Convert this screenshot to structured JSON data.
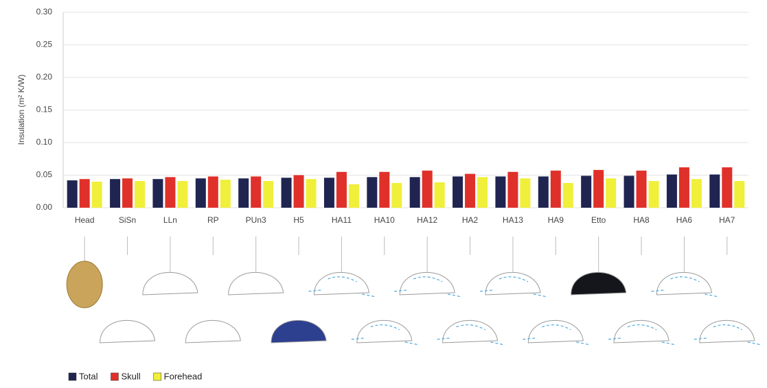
{
  "chart_data": {
    "type": "bar",
    "y_label": "Insulation (m² K/W)",
    "categories": [
      "Head",
      "SiSn",
      "LLn",
      "RP",
      "PUn3",
      "H5",
      "HA11",
      "HA10",
      "HA12",
      "HA2",
      "HA13",
      "HA9",
      "Etto",
      "HA8",
      "HA6",
      "HA7"
    ],
    "series": [
      {
        "name": "Total",
        "color": "#1f2550",
        "values": [
          0.042,
          0.044,
          0.044,
          0.045,
          0.045,
          0.046,
          0.046,
          0.047,
          0.047,
          0.048,
          0.048,
          0.048,
          0.049,
          0.049,
          0.051,
          0.051
        ]
      },
      {
        "name": "Skull",
        "color": "#e0302a",
        "values": [
          0.044,
          0.045,
          0.047,
          0.048,
          0.048,
          0.05,
          0.055,
          0.055,
          0.057,
          0.052,
          0.055,
          0.057,
          0.058,
          0.057,
          0.062,
          0.062
        ]
      },
      {
        "name": "Forehead",
        "color": "#f0ef3a",
        "values": [
          0.04,
          0.041,
          0.041,
          0.043,
          0.041,
          0.044,
          0.036,
          0.038,
          0.039,
          0.047,
          0.045,
          0.038,
          0.045,
          0.041,
          0.044,
          0.041
        ]
      }
    ],
    "ylim": [
      0,
      0.3
    ],
    "yticks": [
      {
        "value": 0,
        "label": "0.00"
      },
      {
        "value": 0.05,
        "label": "0.05"
      },
      {
        "value": 0.1,
        "label": "0.10"
      },
      {
        "value": 0.15,
        "label": "0.15"
      },
      {
        "value": 0.2,
        "label": "0.20"
      },
      {
        "value": 0.25,
        "label": "0.25"
      },
      {
        "value": 0.3,
        "label": "0.30"
      }
    ],
    "grid": true,
    "legend": "bottom-left"
  }
}
